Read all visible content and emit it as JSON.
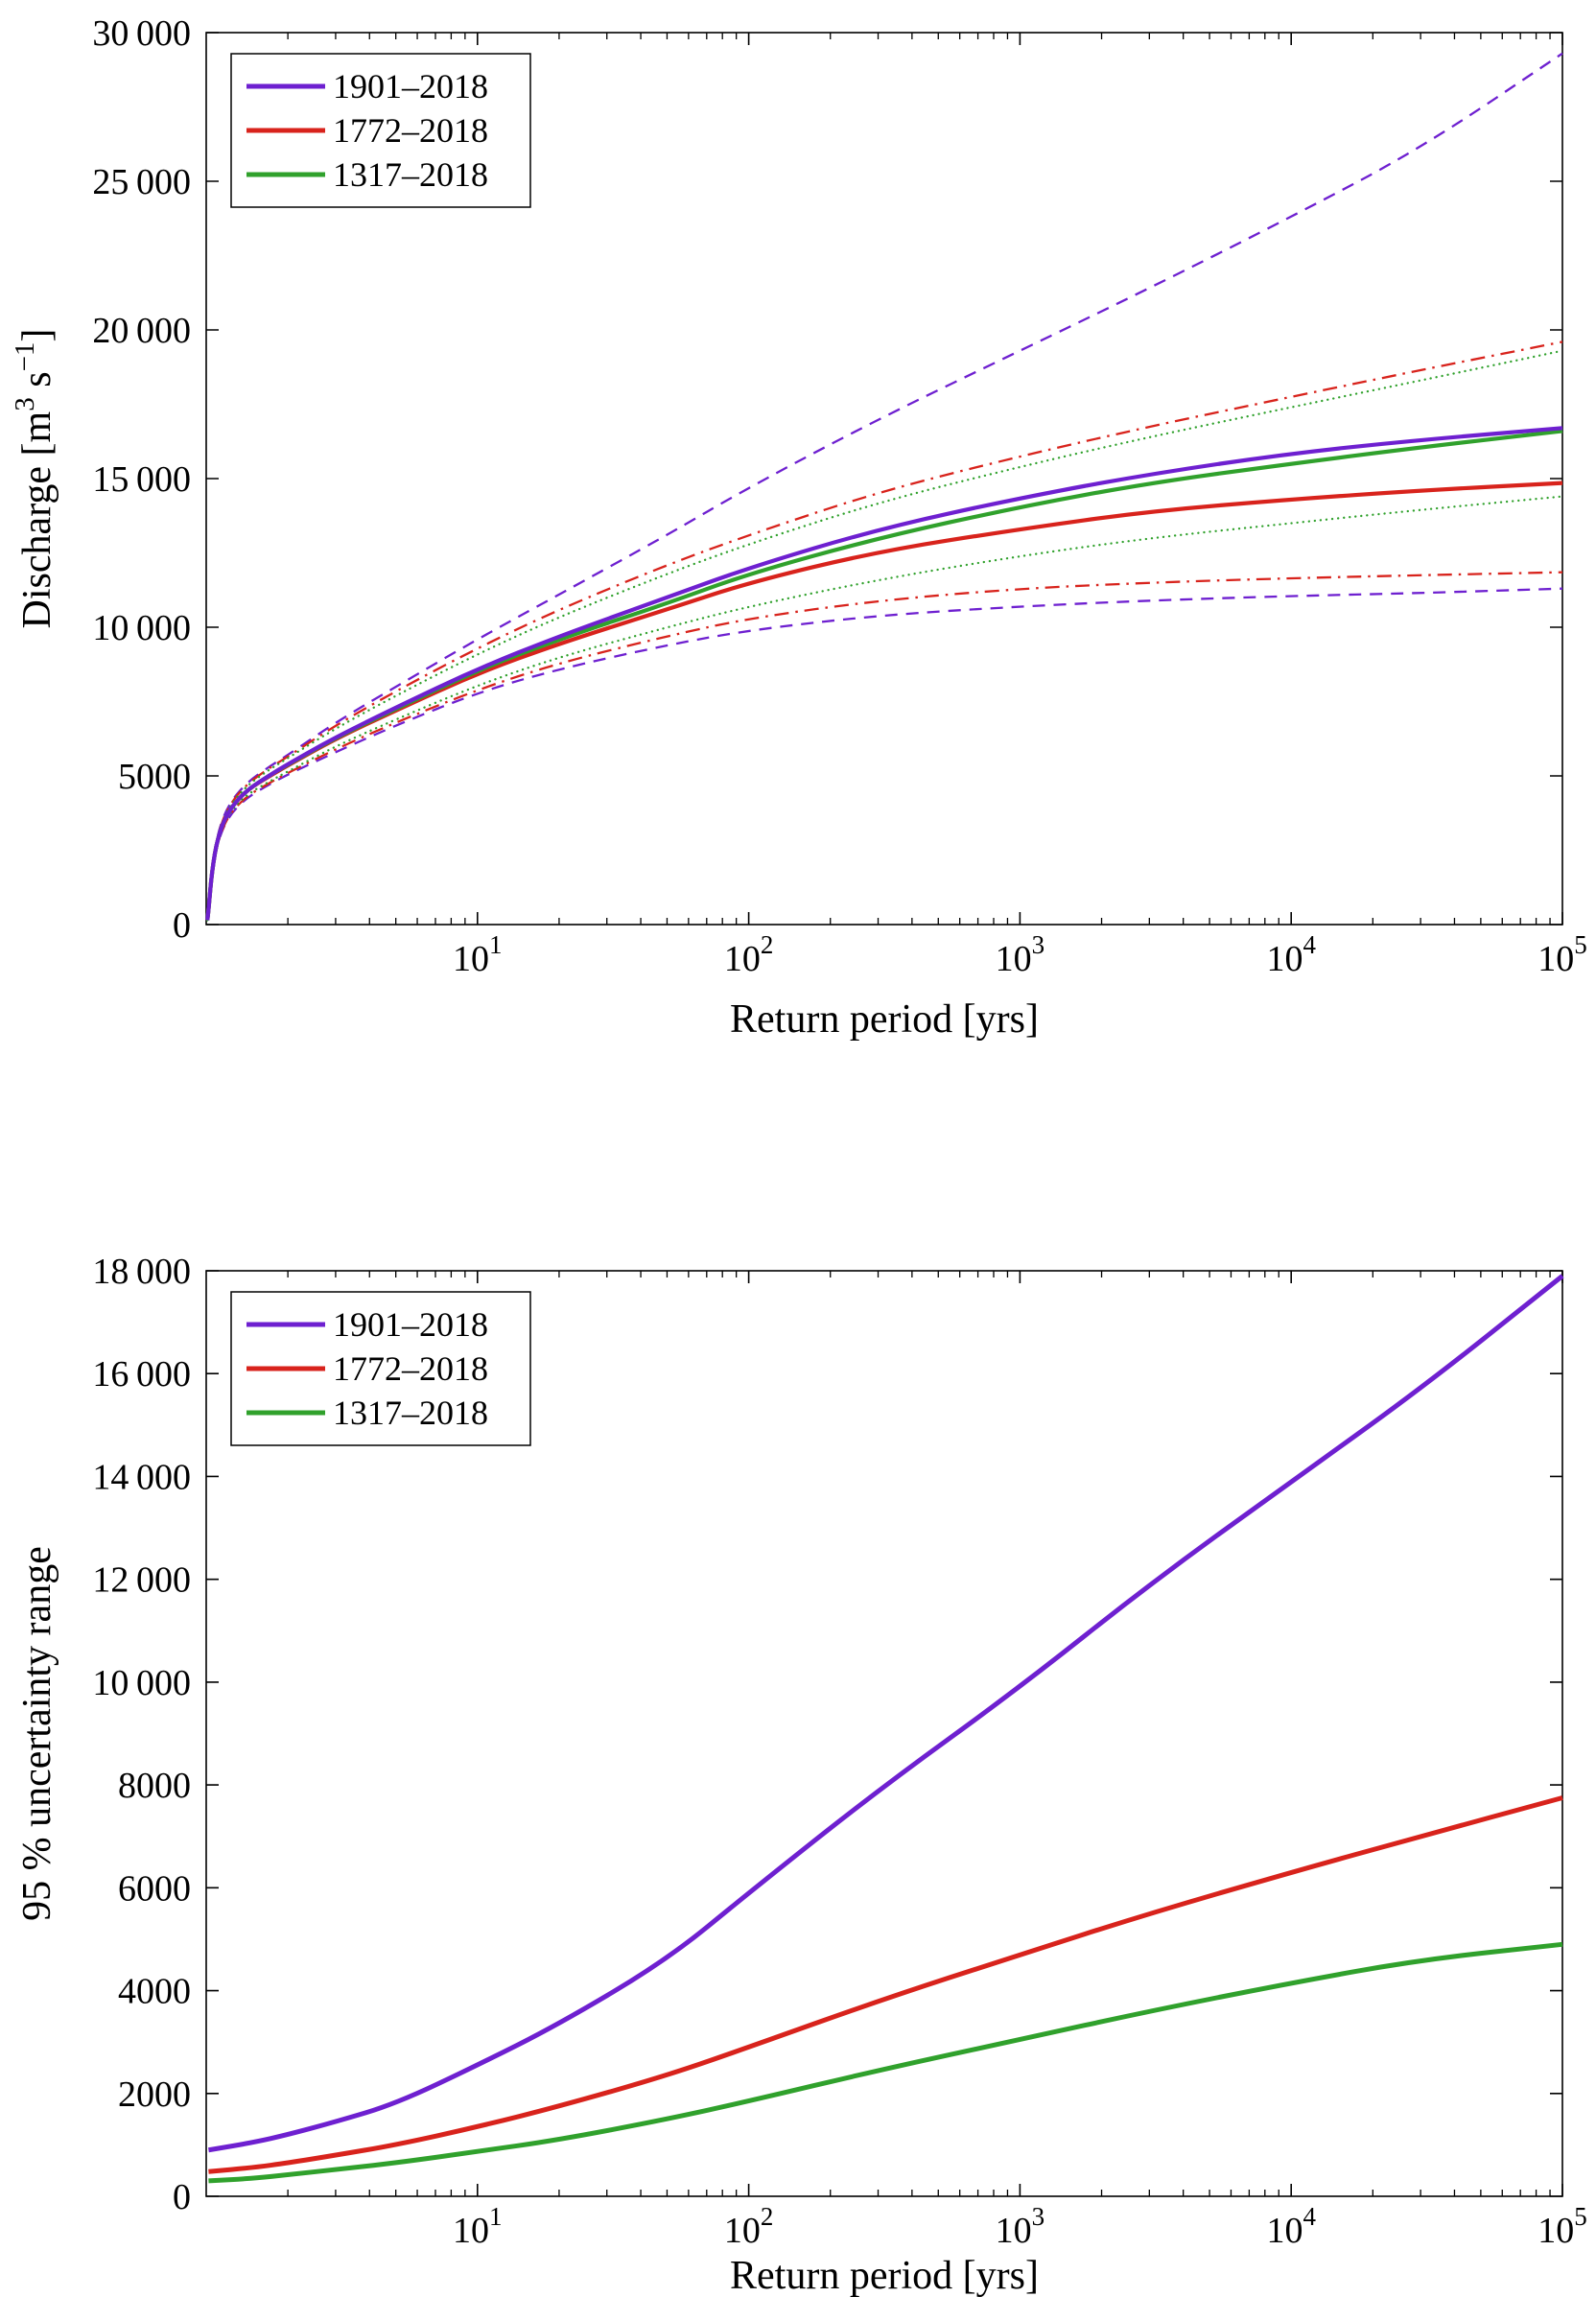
{
  "figure": {
    "background": "#ffffff",
    "accent_colors": {
      "purple": "#6E20D0",
      "red": "#D8231C",
      "green": "#30A12C"
    }
  },
  "chart_data": [
    {
      "type": "line",
      "xscale": "log",
      "xlabel": "Return period [yrs]",
      "ylabel": [
        {
          "text": "Discharge [m"
        },
        {
          "text": "3",
          "sup": true
        },
        {
          "text": " s"
        },
        {
          "text": "−1",
          "sup": true
        },
        {
          "text": "]"
        }
      ],
      "xlim": [
        1,
        100000
      ],
      "ylim": [
        0,
        30000
      ],
      "xticks": [
        10,
        100,
        1000,
        10000,
        100000
      ],
      "yticks": [
        0,
        5000,
        10000,
        15000,
        20000,
        25000,
        30000
      ],
      "legend": {
        "position": "top-left",
        "entries": [
          {
            "label": "1901–2018",
            "color": "#6E20D0"
          },
          {
            "label": "1772–2018",
            "color": "#D8231C"
          },
          {
            "label": "1317–2018",
            "color": "#30A12C"
          }
        ]
      },
      "x": [
        1.01,
        1.02,
        1.05,
        1.1,
        1.2,
        1.4,
        1.7,
        2,
        3,
        5,
        10,
        20,
        50,
        100,
        300,
        1000,
        3000,
        10000,
        30000,
        100000
      ],
      "series": [
        {
          "key": "1901-2018-upper-bound",
          "label": "1901–2018",
          "role": "upper-95-bound",
          "color": "#6E20D0",
          "style": "dashed",
          "width": 2.3,
          "y": [
            160,
            550,
            1900,
            3050,
            4000,
            4750,
            5300,
            5700,
            6800,
            8000,
            9600,
            11100,
            13100,
            14700,
            17000,
            19300,
            21400,
            23800,
            26100,
            29300
          ]
        },
        {
          "key": "1901-2018-lower-bound",
          "label": "1901–2018",
          "role": "lower-95-bound",
          "color": "#6E20D0",
          "style": "dashed",
          "width": 2.3,
          "y": [
            140,
            450,
            1700,
            2750,
            3600,
            4250,
            4700,
            5050,
            5800,
            6700,
            7800,
            8600,
            9400,
            9900,
            10400,
            10700,
            10900,
            11050,
            11150,
            11300
          ]
        },
        {
          "key": "1772-2018-upper-bound",
          "label": "1772–2018",
          "role": "upper-95-bound",
          "color": "#D8231C",
          "style": "dashdot",
          "width": 2.3,
          "y": [
            160,
            550,
            1900,
            3000,
            3950,
            4700,
            5250,
            5650,
            6700,
            7850,
            9300,
            10600,
            12100,
            13100,
            14550,
            15750,
            16750,
            17750,
            18650,
            19600
          ]
        },
        {
          "key": "1772-2018-lower-bound",
          "label": "1772–2018",
          "role": "lower-95-bound",
          "color": "#D8231C",
          "style": "dashdot",
          "width": 2.3,
          "y": [
            140,
            450,
            1700,
            2750,
            3650,
            4300,
            4750,
            5100,
            5900,
            6800,
            7900,
            8800,
            9700,
            10300,
            10900,
            11300,
            11500,
            11650,
            11750,
            11850
          ]
        },
        {
          "key": "1317-2018-upper-bound",
          "label": "1317–2018",
          "role": "upper-95-bound",
          "color": "#30A12C",
          "style": "dotted",
          "width": 2.3,
          "y": [
            155,
            530,
            1850,
            2980,
            3900,
            4650,
            5200,
            5600,
            6600,
            7700,
            9100,
            10350,
            11800,
            12800,
            14200,
            15400,
            16400,
            17400,
            18300,
            19300
          ]
        },
        {
          "key": "1317-2018-lower-bound",
          "label": "1317–2018",
          "role": "lower-95-bound",
          "color": "#30A12C",
          "style": "dotted",
          "width": 2.3,
          "y": [
            145,
            470,
            1750,
            2820,
            3700,
            4350,
            4800,
            5150,
            6000,
            6900,
            8050,
            9000,
            10000,
            10700,
            11600,
            12400,
            13000,
            13500,
            13950,
            14400
          ]
        },
        {
          "key": "1772-2018-best-estimate",
          "label": "1772–2018",
          "role": "best-estimate",
          "color": "#D8231C",
          "style": "solid",
          "width": 4.2,
          "y": [
            150,
            500,
            1800,
            2900,
            3800,
            4500,
            4980,
            5350,
            6250,
            7200,
            8450,
            9450,
            10600,
            11500,
            12550,
            13300,
            13900,
            14300,
            14600,
            14850
          ]
        },
        {
          "key": "1317-2018-best-estimate",
          "label": "1317–2018",
          "role": "best-estimate",
          "color": "#30A12C",
          "style": "solid",
          "width": 4.2,
          "y": [
            150,
            500,
            1800,
            2900,
            3800,
            4500,
            5000,
            5380,
            6280,
            7250,
            8550,
            9600,
            10800,
            11800,
            13000,
            14050,
            14850,
            15500,
            16050,
            16600
          ]
        },
        {
          "key": "1901-2018-best-estimate",
          "label": "1901–2018",
          "role": "best-estimate",
          "color": "#6E20D0",
          "style": "solid",
          "width": 4.2,
          "y": [
            150,
            500,
            1800,
            2900,
            3800,
            4500,
            5000,
            5400,
            6300,
            7300,
            8600,
            9700,
            11000,
            12000,
            13300,
            14350,
            15150,
            15850,
            16300,
            16700
          ]
        }
      ]
    },
    {
      "type": "line",
      "xscale": "log",
      "xlabel": "Return period [yrs]",
      "ylabel": [
        {
          "text": "95 % uncertainty range"
        }
      ],
      "xlim": [
        1,
        100000
      ],
      "ylim": [
        0,
        18000
      ],
      "xticks": [
        10,
        100,
        1000,
        10000,
        100000
      ],
      "yticks": [
        0,
        2000,
        4000,
        6000,
        8000,
        10000,
        12000,
        14000,
        16000,
        18000
      ],
      "legend": {
        "position": "top-left",
        "entries": [
          {
            "label": "1901–2018",
            "color": "#6E20D0"
          },
          {
            "label": "1772–2018",
            "color": "#D8231C"
          },
          {
            "label": "1317–2018",
            "color": "#30A12C"
          }
        ]
      },
      "x": [
        1.02,
        1.5,
        2,
        3,
        5,
        10,
        20,
        50,
        100,
        300,
        1000,
        3000,
        10000,
        30000,
        100000
      ],
      "series": [
        {
          "key": "1901-2018-uncertainty-range",
          "label": "1901–2018",
          "role": "95-uncertainty-range",
          "color": "#6E20D0",
          "style": "solid",
          "width": 5,
          "y": [
            900,
            1050,
            1200,
            1450,
            1800,
            2550,
            3350,
            4600,
            5900,
            7900,
            9900,
            11900,
            13900,
            15700,
            17900
          ]
        },
        {
          "key": "1772-2018-uncertainty-range",
          "label": "1772–2018",
          "role": "95-uncertainty-range",
          "color": "#D8231C",
          "style": "solid",
          "width": 5,
          "y": [
            480,
            560,
            650,
            800,
            1000,
            1350,
            1750,
            2350,
            2900,
            3800,
            4700,
            5500,
            6300,
            7000,
            7750
          ]
        },
        {
          "key": "1317-2018-uncertainty-range",
          "label": "1317–2018",
          "role": "95-uncertainty-range",
          "color": "#30A12C",
          "style": "solid",
          "width": 5,
          "y": [
            300,
            350,
            420,
            520,
            650,
            870,
            1100,
            1500,
            1850,
            2450,
            3050,
            3600,
            4150,
            4600,
            4900
          ]
        }
      ]
    }
  ]
}
